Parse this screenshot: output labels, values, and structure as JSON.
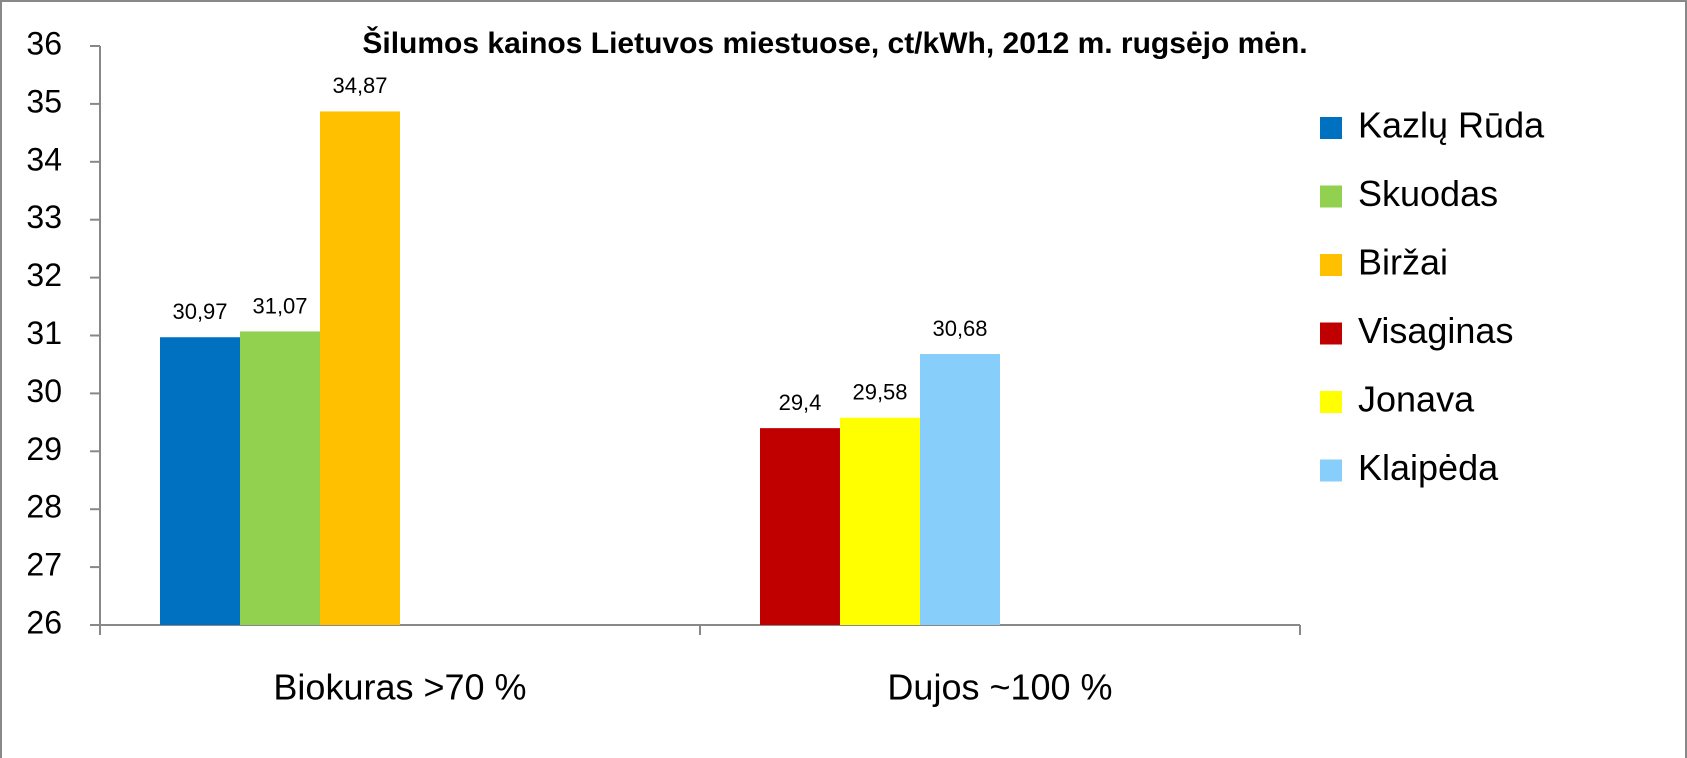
{
  "chart_data": {
    "type": "bar",
    "title": "Šilumos kainos Lietuvos miestuose, ct/kWh,  2012 m. rugsėjo mėn.",
    "categories": [
      "Biokuras  >70 %",
      "Dujos ~100 %"
    ],
    "series": [
      {
        "name": "Kazlų Rūda",
        "color": "#0070c0",
        "values": [
          30.97,
          null
        ],
        "value_labels": [
          "30,97",
          null
        ]
      },
      {
        "name": "Skuodas",
        "color": "#92d050",
        "values": [
          31.07,
          null
        ],
        "value_labels": [
          "31,07",
          null
        ]
      },
      {
        "name": "Biržai",
        "color": "#ffc000",
        "values": [
          34.87,
          null
        ],
        "value_labels": [
          "34,87",
          null
        ]
      },
      {
        "name": "Visaginas",
        "color": "#c00000",
        "values": [
          null,
          29.4
        ],
        "value_labels": [
          null,
          "29,4"
        ]
      },
      {
        "name": "Jonava",
        "color": "#ffff00",
        "values": [
          null,
          29.58
        ],
        "value_labels": [
          null,
          "29,58"
        ]
      },
      {
        "name": "Klaipėda",
        "color": "#87cefa",
        "values": [
          null,
          30.68
        ],
        "value_labels": [
          null,
          "30,68"
        ]
      }
    ],
    "ylim": [
      26,
      36
    ],
    "yticks": [
      26,
      27,
      28,
      29,
      30,
      31,
      32,
      33,
      34,
      35,
      36
    ],
    "grid": false,
    "legend": "right"
  }
}
